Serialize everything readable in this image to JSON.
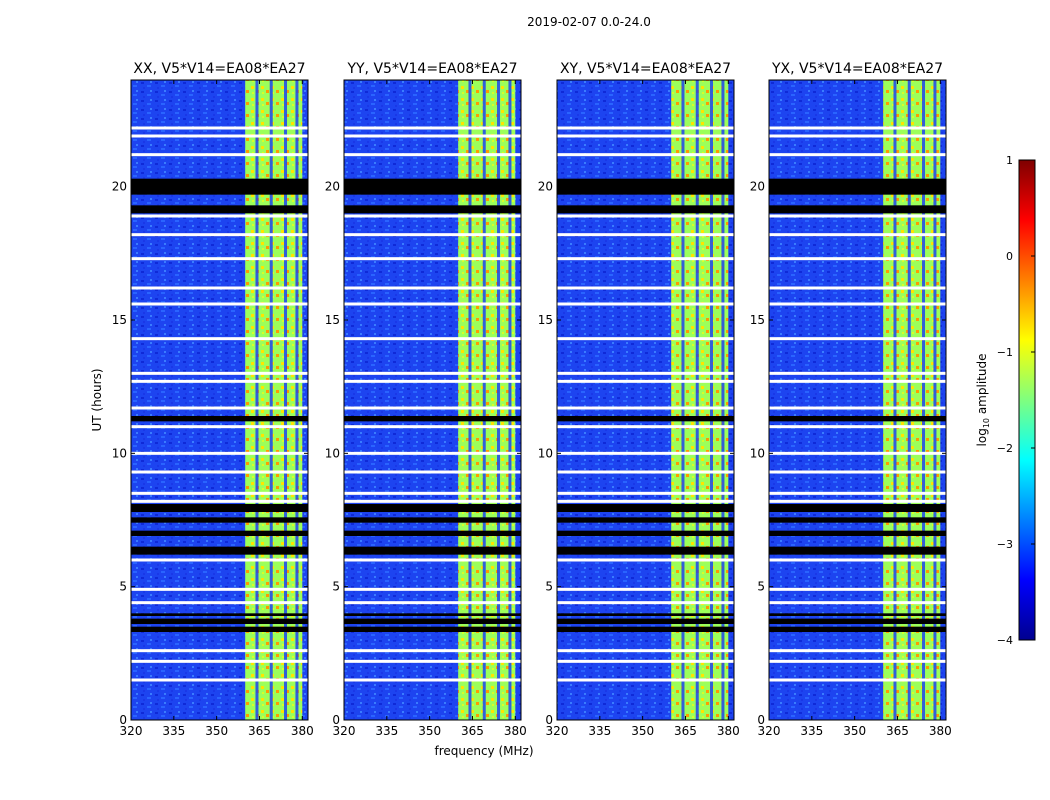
{
  "chart_data": {
    "type": "heatmap",
    "title": "2019-02-07 0.0-24.0",
    "xlabel": "frequency (MHz)",
    "ylabel": "UT (hours)",
    "xlim": [
      320,
      382
    ],
    "ylim": [
      0,
      24
    ],
    "x_ticks": [
      "320",
      "335",
      "350",
      "365",
      "380"
    ],
    "y_ticks": [
      "0",
      "5",
      "10",
      "15",
      "20"
    ],
    "panels": [
      {
        "title": "XX, V5*V14=EA08*EA27"
      },
      {
        "title": "YY, V5*V14=EA08*EA27"
      },
      {
        "title": "XY, V5*V14=EA08*EA27"
      },
      {
        "title": "YX, V5*V14=EA08*EA27"
      }
    ],
    "colorbar": {
      "label": "log",
      "label_sub": "10",
      "label_rest": " amplitude",
      "range": [
        -4,
        1
      ],
      "ticks": [
        "1",
        "0",
        "−1",
        "−2",
        "−3",
        "−4"
      ],
      "colormap": "jet"
    },
    "bright_band_mhz": [
      360,
      380
    ],
    "gap_rows_ut": [
      22.2,
      21.9,
      21.2,
      18.9,
      18.2,
      17.3,
      16.2,
      15.6,
      14.3,
      13.0,
      12.7,
      11.7,
      11.0,
      10.0,
      9.3,
      8.5,
      8.2,
      7.0,
      6.0,
      4.9,
      4.4,
      3.4,
      2.6,
      2.2,
      1.5
    ],
    "black_rows_ut": [
      [
        19.7,
        20.3
      ],
      [
        19.0,
        19.3
      ],
      [
        11.2,
        11.4
      ],
      [
        7.8,
        8.1
      ],
      [
        7.4,
        7.6
      ],
      [
        6.9,
        7.1
      ],
      [
        6.2,
        6.5
      ],
      [
        3.9,
        4.0
      ],
      [
        3.6,
        3.8
      ],
      [
        3.3,
        3.5
      ]
    ]
  }
}
